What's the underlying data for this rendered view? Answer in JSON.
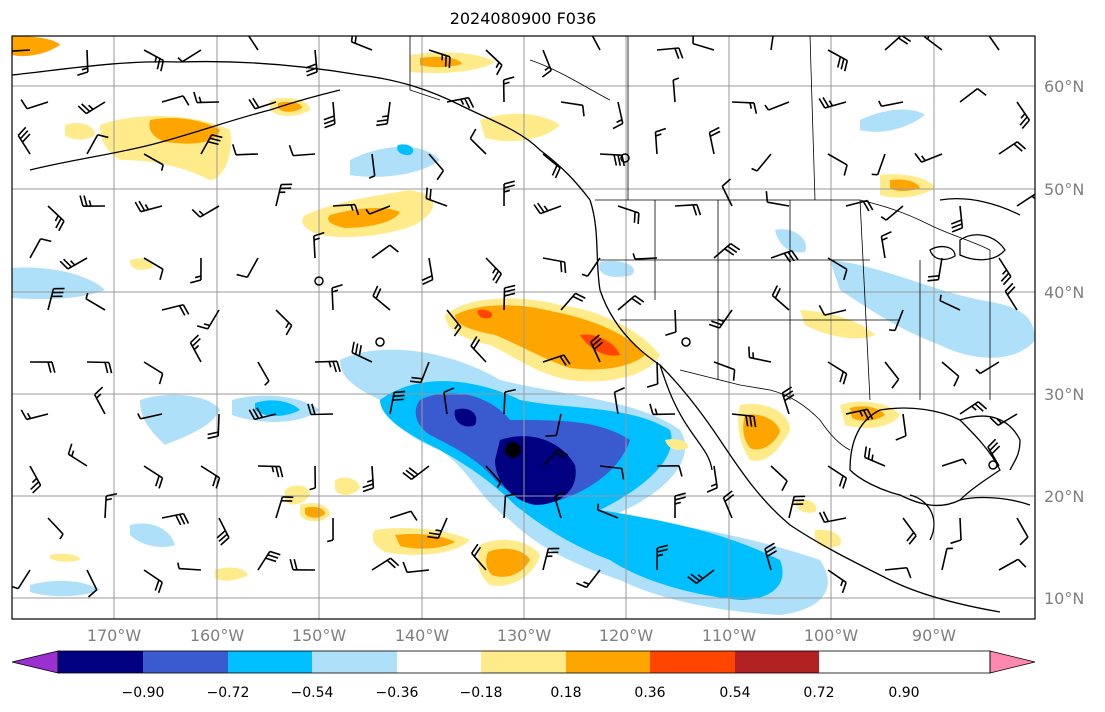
{
  "title": "2024080900 F036",
  "lat_labels": [
    "60°N",
    "50°N",
    "40°N",
    "30°N",
    "20°N",
    "10°N"
  ],
  "lon_labels": [
    "170°W",
    "160°W",
    "150°W",
    "140°W",
    "130°W",
    "120°W",
    "110°W",
    "100°W",
    "90°W"
  ],
  "colorbar": {
    "ticks": [
      "−0.90",
      "−0.72",
      "−0.54",
      "−0.36",
      "−0.18",
      "0.18",
      "0.36",
      "0.54",
      "0.72",
      "0.90"
    ],
    "colors": [
      "#9b30d0",
      "#000080",
      "#3a5bd0",
      "#00bfff",
      "#aee0fa",
      "#ffffff",
      "#ffeb8a",
      "#ffa500",
      "#ff4500",
      "#b22222",
      "#ff88b0"
    ]
  },
  "palette": {
    "ocean": "#ffffff",
    "grid": "#999999",
    "coast": "#000000",
    "neg_deep": "#000080",
    "neg_mid": "#3a5bd0",
    "neg": "#00bfff",
    "neg_light": "#aee0fa",
    "pos_light": "#ffeb8a",
    "pos": "#ffa500",
    "pos_strong": "#ff4500"
  }
}
